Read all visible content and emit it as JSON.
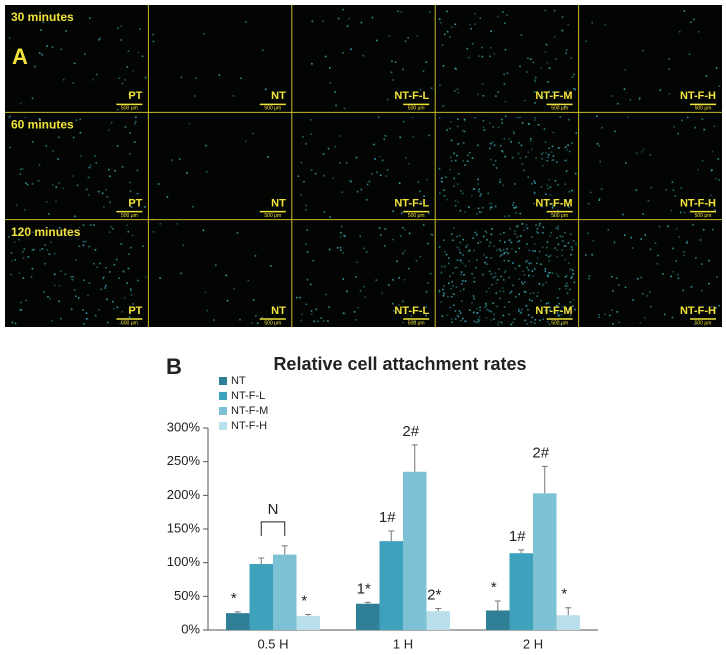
{
  "panel_a": {
    "panel_label": "A",
    "rows": [
      "30 minutes",
      "60 minutes",
      "120 minutes"
    ],
    "columns": [
      "PT",
      "NT",
      "NT-F-L",
      "NT-F-M",
      "NT-F-H"
    ],
    "scale_bar": "500 μm"
  },
  "chart_data": {
    "type": "bar",
    "panel_label": "B",
    "title": "Relative cell attachment rates",
    "categories": [
      "0.5 H",
      "1 H",
      "2 H"
    ],
    "series": [
      {
        "name": "NT",
        "color": "#2f8096",
        "values": [
          25,
          39,
          29
        ],
        "errors": [
          2,
          2,
          14
        ],
        "labels": [
          "*",
          "1*",
          "*"
        ]
      },
      {
        "name": "NT-F-L",
        "color": "#3fa2bd",
        "values": [
          98,
          132,
          114
        ],
        "errors": [
          9,
          15,
          5
        ],
        "labels": [
          null,
          "1#",
          "1#"
        ]
      },
      {
        "name": "NT-F-M",
        "color": "#7dc1d4",
        "values": [
          112,
          235,
          203
        ],
        "errors": [
          13,
          40,
          40
        ],
        "labels": [
          null,
          "2#",
          "2#"
        ]
      },
      {
        "name": "NT-F-H",
        "color": "#b9dfea",
        "values": [
          21,
          28,
          22
        ],
        "errors": [
          2,
          4,
          11
        ],
        "labels": [
          "*",
          "2*",
          "*"
        ]
      }
    ],
    "bracket_label": "N",
    "ylim": [
      0,
      300
    ],
    "yticks": [
      {
        "value": 0,
        "label": "0%"
      },
      {
        "value": 50,
        "label": "50%"
      },
      {
        "value": 100,
        "label": "100%"
      },
      {
        "value": 150,
        "label": "150%"
      },
      {
        "value": 200,
        "label": "200%"
      },
      {
        "value": 250,
        "label": "250%"
      },
      {
        "value": 300,
        "label": "300%"
      }
    ],
    "legend": "upper left"
  }
}
